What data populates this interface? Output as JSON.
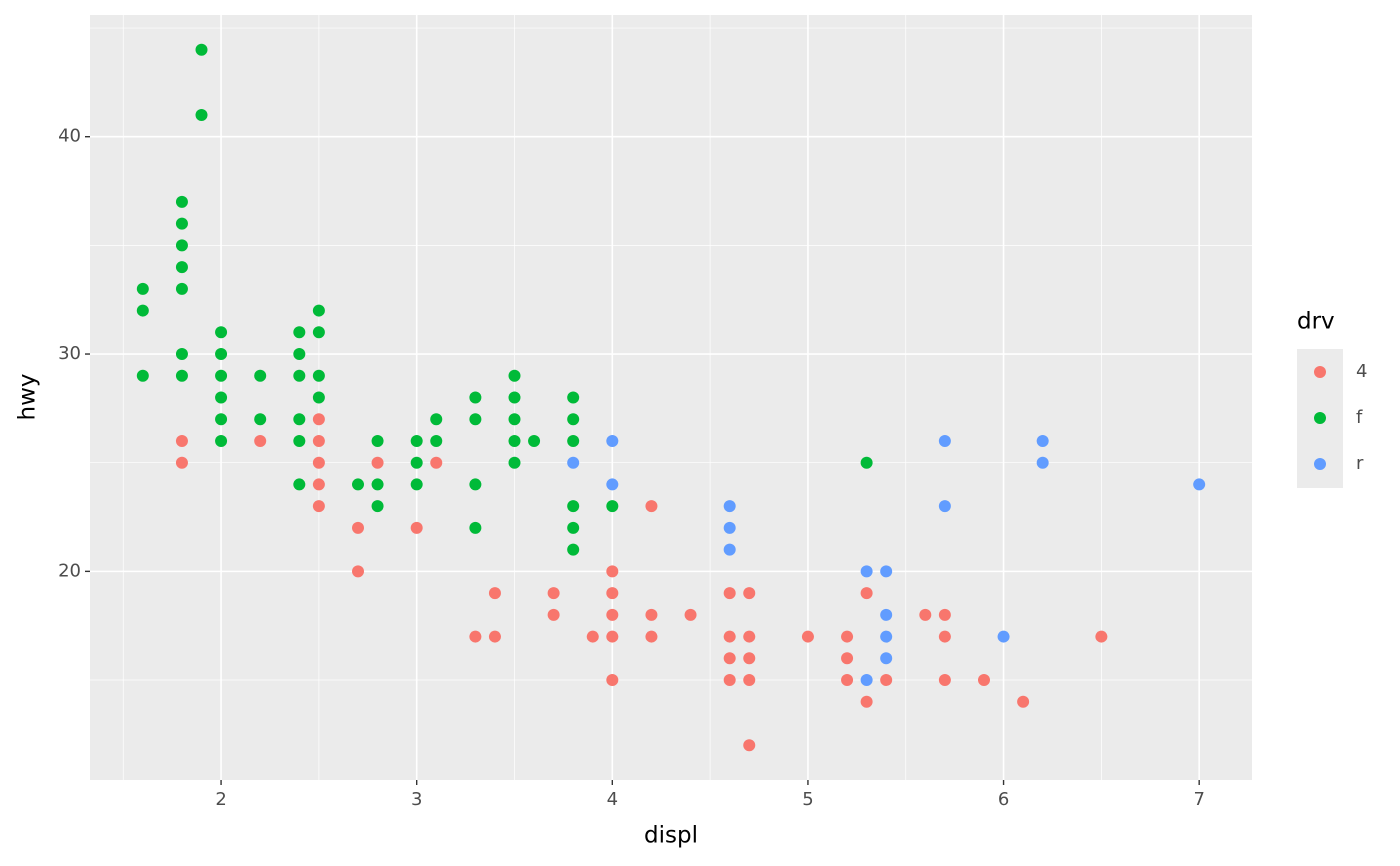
{
  "chart_data": {
    "type": "scatter",
    "x_label": "displ",
    "y_label": "hwy",
    "legend_title": "drv",
    "legend": "right",
    "grid": true,
    "xlim": [
      1.33,
      7.27
    ],
    "ylim": [
      10.4,
      45.6
    ],
    "xticks": [
      2,
      3,
      4,
      5,
      6,
      7
    ],
    "yticks": [
      20,
      30,
      40
    ],
    "series": [
      {
        "name": "4",
        "color": "#F8766D",
        "x": [
          1.8,
          1.8,
          2.2,
          2.5,
          2.5,
          2.5,
          2.5,
          2.5,
          2.7,
          2.7,
          2.8,
          3.0,
          3.1,
          3.3,
          3.4,
          3.4,
          3.7,
          3.7,
          3.9,
          4.0,
          4.0,
          4.0,
          4.0,
          4.0,
          4.2,
          4.2,
          4.2,
          4.4,
          4.6,
          4.6,
          4.6,
          4.6,
          4.7,
          4.7,
          4.7,
          4.7,
          4.7,
          5.0,
          5.2,
          5.2,
          5.2,
          5.3,
          5.3,
          5.4,
          5.6,
          5.7,
          5.7,
          5.7,
          5.9,
          6.1,
          6.5
        ],
        "values": [
          26,
          25,
          26,
          27,
          26,
          25,
          24,
          23,
          22,
          20,
          25,
          22,
          25,
          17,
          19,
          17,
          19,
          18,
          17,
          20,
          19,
          18,
          17,
          15,
          23,
          18,
          17,
          18,
          19,
          17,
          16,
          15,
          19,
          17,
          16,
          15,
          12,
          17,
          17,
          16,
          15,
          19,
          14,
          15,
          18,
          18,
          17,
          15,
          15,
          14,
          17
        ]
      },
      {
        "name": "f",
        "color": "#00BA38",
        "x": [
          1.6,
          1.6,
          1.6,
          1.8,
          1.8,
          1.8,
          1.8,
          1.8,
          1.8,
          1.8,
          1.9,
          1.9,
          2.0,
          2.0,
          2.0,
          2.0,
          2.0,
          2.0,
          2.2,
          2.2,
          2.4,
          2.4,
          2.4,
          2.4,
          2.4,
          2.4,
          2.5,
          2.5,
          2.5,
          2.5,
          2.7,
          2.8,
          2.8,
          2.8,
          3.0,
          3.0,
          3.0,
          3.1,
          3.1,
          3.3,
          3.3,
          3.3,
          3.3,
          3.5,
          3.5,
          3.5,
          3.5,
          3.5,
          3.6,
          3.8,
          3.8,
          3.8,
          3.8,
          3.8,
          3.8,
          4.0,
          5.3
        ],
        "values": [
          33,
          32,
          29,
          37,
          36,
          35,
          34,
          33,
          30,
          29,
          44,
          41,
          31,
          30,
          29,
          28,
          27,
          26,
          29,
          27,
          31,
          30,
          29,
          27,
          26,
          24,
          32,
          31,
          29,
          28,
          24,
          26,
          24,
          23,
          26,
          25,
          24,
          27,
          26,
          28,
          27,
          24,
          22,
          29,
          28,
          27,
          26,
          25,
          26,
          28,
          27,
          26,
          23,
          22,
          21,
          23,
          25
        ]
      },
      {
        "name": "r",
        "color": "#619CFF",
        "x": [
          3.8,
          4.0,
          4.0,
          4.6,
          4.6,
          4.6,
          5.3,
          5.3,
          5.4,
          5.4,
          5.4,
          5.4,
          5.7,
          5.7,
          6.0,
          6.2,
          6.2,
          7.0
        ],
        "values": [
          25,
          26,
          24,
          23,
          22,
          21,
          20,
          15,
          20,
          18,
          17,
          16,
          26,
          23,
          17,
          26,
          25,
          24
        ]
      }
    ]
  }
}
